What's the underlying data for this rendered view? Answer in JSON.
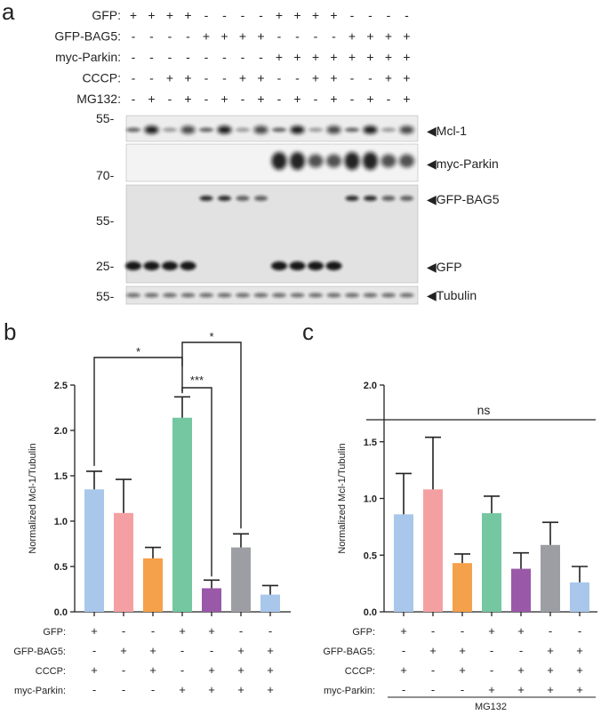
{
  "panels": {
    "a": "a",
    "b": "b",
    "c": "c"
  },
  "blot": {
    "conditions": [
      {
        "label": "GFP:",
        "values": [
          "+",
          "+",
          "+",
          "+",
          "-",
          "-",
          "-",
          "-",
          "+",
          "+",
          "+",
          "+",
          "-",
          "-",
          "-",
          "-"
        ]
      },
      {
        "label": "GFP-BAG5:",
        "values": [
          "-",
          "-",
          "-",
          "-",
          "+",
          "+",
          "+",
          "+",
          "-",
          "-",
          "-",
          "-",
          "+",
          "+",
          "+",
          "+"
        ]
      },
      {
        "label": "myc-Parkin:",
        "values": [
          "-",
          "-",
          "-",
          "-",
          "-",
          "-",
          "-",
          "-",
          "+",
          "+",
          "+",
          "+",
          "+",
          "+",
          "+",
          "+"
        ]
      },
      {
        "label": "CCCP:",
        "values": [
          "-",
          "-",
          "+",
          "+",
          "-",
          "-",
          "+",
          "+",
          "-",
          "-",
          "+",
          "+",
          "-",
          "-",
          "+",
          "+"
        ]
      },
      {
        "label": "MG132:",
        "values": [
          "-",
          "+",
          "-",
          "+",
          "-",
          "+",
          "-",
          "+",
          "-",
          "+",
          "-",
          "+",
          "-",
          "+",
          "-",
          "+"
        ]
      }
    ],
    "markers": [
      "55-",
      "70-",
      "55-",
      "25-",
      "55-"
    ],
    "bands": [
      "Mcl-1",
      "myc-Parkin",
      "GFP-BAG5",
      "GFP",
      "Tubulin"
    ],
    "arrow": "◀"
  },
  "chart_data": [
    {
      "type": "bar",
      "panel": "b",
      "ylabel": "Normalized Mcl-1/Tubulin",
      "ylim": [
        0,
        2.5
      ],
      "yticks": [
        "0.0",
        "0.5",
        "1.0",
        "1.5",
        "2.0",
        "2.5"
      ],
      "values": [
        1.35,
        1.09,
        0.59,
        2.14,
        0.26,
        0.71,
        0.19
      ],
      "errors": [
        0.2,
        0.37,
        0.12,
        0.23,
        0.09,
        0.15,
        0.1
      ],
      "colors": [
        "#a8c7ea",
        "#f4a0a3",
        "#f5a04a",
        "#74c7a0",
        "#9a58a8",
        "#9c9ea3",
        "#a8c7ea"
      ],
      "significance": [
        {
          "from": 0,
          "to": 3,
          "label": "*"
        },
        {
          "from": 3,
          "to": 4,
          "label": "***"
        },
        {
          "from": 3,
          "to": 5,
          "label": "*"
        }
      ],
      "conditions": [
        {
          "label": "GFP:",
          "values": [
            "+",
            "-",
            "-",
            "+",
            "+",
            "-",
            "-"
          ]
        },
        {
          "label": "GFP-BAG5:",
          "values": [
            "-",
            "+",
            "+",
            "-",
            "-",
            "+",
            "+"
          ]
        },
        {
          "label": "CCCP:",
          "values": [
            "+",
            "-",
            "+",
            "-",
            "+",
            "+",
            "+"
          ]
        },
        {
          "label": "myc-Parkin:",
          "values": [
            "-",
            "-",
            "-",
            "+",
            "+",
            "+",
            "+"
          ]
        }
      ]
    },
    {
      "type": "bar",
      "panel": "c",
      "ylabel": "Normalized Mcl-1/Tubulin",
      "ylim": [
        0,
        2.0
      ],
      "yticks": [
        "0.0",
        "0.5",
        "1.0",
        "1.5",
        "2.0"
      ],
      "values": [
        0.86,
        1.08,
        0.43,
        0.87,
        0.38,
        0.59,
        0.26
      ],
      "errors": [
        0.36,
        0.46,
        0.08,
        0.15,
        0.14,
        0.2,
        0.14
      ],
      "colors": [
        "#a8c7ea",
        "#f4a0a3",
        "#f5a04a",
        "#74c7a0",
        "#9a58a8",
        "#9c9ea3",
        "#a8c7ea"
      ],
      "significance_label": "ns",
      "treatment_label": "MG132",
      "conditions": [
        {
          "label": "GFP:",
          "values": [
            "+",
            "-",
            "-",
            "+",
            "+",
            "-",
            "-"
          ]
        },
        {
          "label": "GFP-BAG5:",
          "values": [
            "-",
            "+",
            "+",
            "-",
            "-",
            "+",
            "+"
          ]
        },
        {
          "label": "CCCP:",
          "values": [
            "+",
            "-",
            "+",
            "-",
            "+",
            "+",
            "+"
          ]
        },
        {
          "label": "myc-Parkin:",
          "values": [
            "-",
            "-",
            "-",
            "+",
            "+",
            "+",
            "+"
          ]
        }
      ]
    }
  ]
}
